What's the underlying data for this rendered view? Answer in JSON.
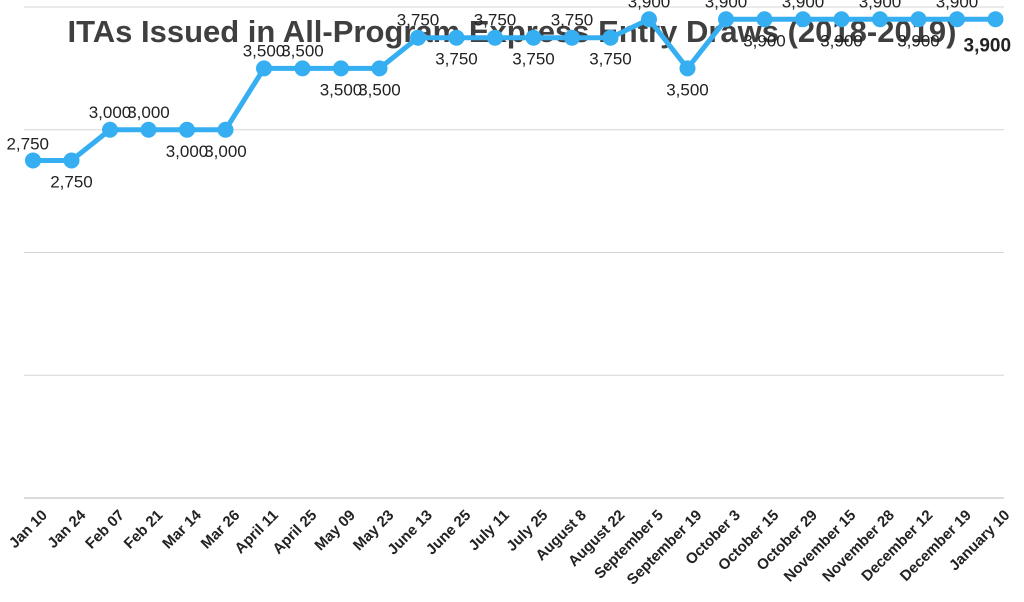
{
  "colors": {
    "series": "#35aef2",
    "grid": "#d6d6d6",
    "text": "#222222",
    "title": "#3f3f3f"
  },
  "chart_data": {
    "type": "line",
    "title": "ITAs Issued in All-Program Express Entry Draws (2018-2019)",
    "xlabel": "",
    "ylabel": "",
    "ylim": [
      0,
      4000
    ],
    "grid": true,
    "legend": "none",
    "categories": [
      "Jan 10",
      "Jan 24",
      "Feb 07",
      "Feb 21",
      "Mar 14",
      "Mar 26",
      "April 11",
      "April 25",
      "May 09",
      "May 23",
      "June 13",
      "June 25",
      "July 11",
      "July 25",
      "August 8",
      "August 22",
      "September 5",
      "September 19",
      "October 3",
      "October 15",
      "October 29",
      "November 15",
      "November 28",
      "December 12",
      "December 19",
      "January 10"
    ],
    "series": [
      {
        "values": [
          2750,
          2750,
          3000,
          3000,
          3000,
          3000,
          3500,
          3500,
          3500,
          3500,
          3750,
          3750,
          3750,
          3750,
          3750,
          3750,
          3900,
          3500,
          3900,
          3900,
          3900,
          3900,
          3900,
          3900,
          3900,
          3900
        ],
        "labels": [
          "2,750",
          "2,750",
          "3,000",
          "3,000",
          "3,000",
          "3,000",
          "3,500",
          "3,500",
          "3,500",
          "3,500",
          "3,750",
          "3,750",
          "3,750",
          "3,750",
          "3,750",
          "3,750",
          "3,900",
          "3,500",
          "3,900",
          "3,900",
          "3,900",
          "3,900",
          "3,900",
          "3,900",
          "3,900",
          "3,900"
        ]
      }
    ]
  }
}
